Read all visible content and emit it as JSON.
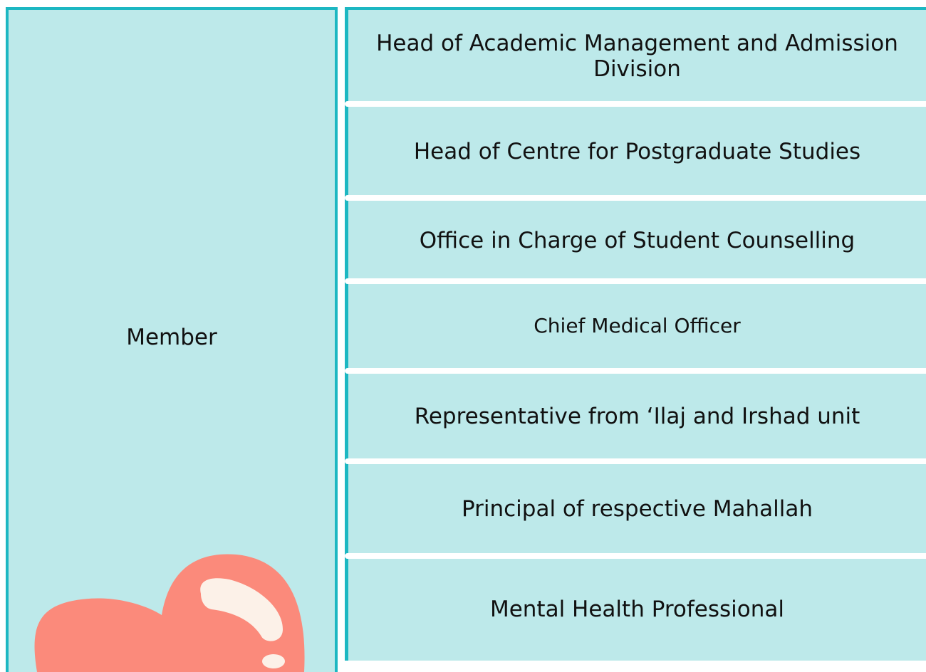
{
  "table": {
    "label": "Member",
    "rows": [
      "Head of Academic Management and Admission Division",
      "Head of Centre for Postgraduate Studies",
      "Office in Charge of Student Counselling",
      "Chief Medical Officer",
      "Representative from ‘Ilaj and Irshad unit",
      "Principal of respective Mahallah",
      "Mental Health Professional"
    ]
  }
}
